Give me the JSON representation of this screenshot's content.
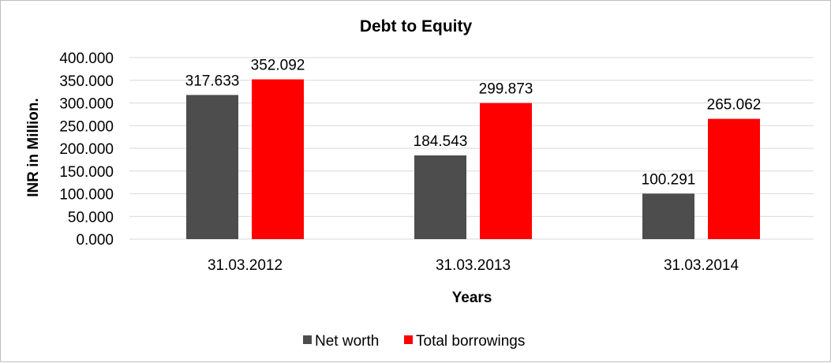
{
  "chart_data": {
    "type": "bar",
    "title": "Debt to Equity",
    "xlabel": "Years",
    "ylabel": "INR in Million.",
    "categories": [
      "31.03.2012",
      "31.03.2013",
      "31.03.2014"
    ],
    "series": [
      {
        "name": "Net worth",
        "values": [
          317.633,
          184.543,
          100.291
        ],
        "labels": [
          "317.633",
          "184.543",
          "100.291"
        ],
        "color": "#4d4d4d"
      },
      {
        "name": "Total borrowings",
        "values": [
          352.092,
          299.873,
          265.062
        ],
        "labels": [
          "352.092",
          "299.873",
          "265.062"
        ],
        "color": "#ff0000"
      }
    ],
    "ylim": [
      0,
      400
    ],
    "yticks": [
      0,
      50,
      100,
      150,
      200,
      250,
      300,
      350,
      400
    ],
    "ytick_labels": [
      "0.000",
      "50.000",
      "100.000",
      "150.000",
      "200.000",
      "250.000",
      "300.000",
      "350.000",
      "400.000"
    ],
    "grid": true,
    "legend_position": "bottom"
  }
}
